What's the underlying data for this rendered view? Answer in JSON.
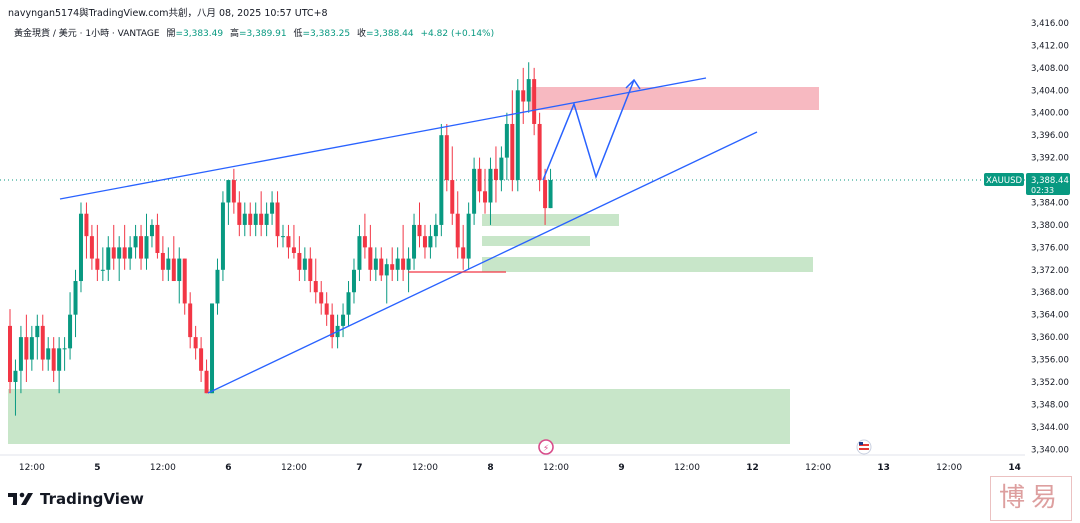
{
  "header": {
    "publish_line": "navyngan5174與TradingView.com共創，八月 08, 2025 10:57 UTC+8"
  },
  "legend": {
    "symbol_line": "黃金現貨 / 美元 · 1小時 · VANTAGE",
    "open_label": "開",
    "open": "=3,383.49",
    "high_label": "高",
    "high": "=3,389.91",
    "low_label": "低",
    "low": "=3,383.25",
    "close_label": "收",
    "close": "=3,388.44",
    "change": "+4.82 (+0.14%)"
  },
  "price_tag": {
    "symbol": "XAUUSD",
    "price": "3,388.44",
    "countdown": "02:33"
  },
  "footer": {
    "brand": "TradingView",
    "watermark": "博易"
  },
  "colors": {
    "up": "#089981",
    "down": "#f23645",
    "trendline": "#2962ff",
    "resistance_zone": "#f7b9c1",
    "support_zone": "#c8e6c9",
    "price_line": "#089981"
  },
  "chart_data": {
    "type": "candlestick",
    "timeframe": "1h",
    "ylim": [
      3338,
      3418
    ],
    "y_ticks": [
      "3,416.00",
      "3,412.00",
      "3,408.00",
      "3,404.00",
      "3,400.00",
      "3,396.00",
      "3,392.00",
      "3,388.00",
      "3,384.00",
      "3,380.00",
      "3,376.00",
      "3,372.00",
      "3,368.00",
      "3,364.00",
      "3,360.00",
      "3,356.00",
      "3,352.00",
      "3,348.00",
      "3,344.00",
      "3,340.00"
    ],
    "y_tick_values": [
      3416,
      3412,
      3408,
      3404,
      3400,
      3396,
      3392,
      3388,
      3384,
      3380,
      3376,
      3372,
      3368,
      3364,
      3360,
      3356,
      3352,
      3348,
      3344,
      3340
    ],
    "x_ticks": [
      "12:00",
      "5",
      "12:00",
      "6",
      "12:00",
      "7",
      "12:00",
      "8",
      "12:00",
      "9",
      "12:00",
      "12",
      "12:00",
      "13",
      "12:00",
      "14"
    ],
    "x_tick_bold": [
      false,
      true,
      false,
      true,
      false,
      true,
      false,
      true,
      false,
      true,
      false,
      true,
      false,
      true,
      false,
      true
    ],
    "x_tick_index": [
      0,
      12,
      24,
      36,
      48,
      60,
      72,
      84,
      96,
      108,
      120,
      132,
      144,
      156,
      168,
      180
    ],
    "x_tick_index_offset": 4,
    "candles": [
      [
        3362,
        3365,
        3350,
        3352
      ],
      [
        3352,
        3356,
        3346,
        3354
      ],
      [
        3354,
        3362,
        3350,
        3360
      ],
      [
        3360,
        3364,
        3352,
        3356
      ],
      [
        3356,
        3362,
        3354,
        3360
      ],
      [
        3360,
        3364,
        3356,
        3362
      ],
      [
        3362,
        3364,
        3354,
        3356
      ],
      [
        3356,
        3360,
        3354,
        3358
      ],
      [
        3358,
        3360,
        3352,
        3354
      ],
      [
        3354,
        3360,
        3350,
        3358
      ],
      [
        3358,
        3360,
        3354,
        3358
      ],
      [
        3358,
        3368,
        3356,
        3364
      ],
      [
        3364,
        3372,
        3360,
        3370
      ],
      [
        3370,
        3384,
        3368,
        3382
      ],
      [
        3382,
        3384,
        3374,
        3378
      ],
      [
        3378,
        3380,
        3372,
        3374
      ],
      [
        3374,
        3380,
        3370,
        3372
      ],
      [
        3372,
        3376,
        3370,
        3372
      ],
      [
        3372,
        3378,
        3370,
        3376
      ],
      [
        3376,
        3380,
        3372,
        3374
      ],
      [
        3374,
        3378,
        3370,
        3376
      ],
      [
        3376,
        3380,
        3372,
        3374
      ],
      [
        3374,
        3378,
        3372,
        3376
      ],
      [
        3376,
        3380,
        3374,
        3378
      ],
      [
        3378,
        3380,
        3372,
        3374
      ],
      [
        3374,
        3382,
        3372,
        3378
      ],
      [
        3378,
        3381,
        3376,
        3380
      ],
      [
        3380,
        3382,
        3374,
        3375
      ],
      [
        3375,
        3378,
        3370,
        3372
      ],
      [
        3372,
        3376,
        3370,
        3374
      ],
      [
        3374,
        3378,
        3370,
        3370
      ],
      [
        3370,
        3376,
        3366,
        3374
      ],
      [
        3374,
        3374,
        3364,
        3366
      ],
      [
        3366,
        3368,
        3358,
        3360
      ],
      [
        3360,
        3362,
        3356,
        3358
      ],
      [
        3358,
        3360,
        3352,
        3354
      ],
      [
        3354,
        3356,
        3350,
        3350
      ],
      [
        3350,
        3366,
        3350,
        3366
      ],
      [
        3366,
        3374,
        3364,
        3372
      ],
      [
        3372,
        3386,
        3370,
        3384
      ],
      [
        3384,
        3388,
        3380,
        3388
      ],
      [
        3388,
        3390,
        3382,
        3384
      ],
      [
        3384,
        3386,
        3378,
        3380
      ],
      [
        3380,
        3384,
        3378,
        3382
      ],
      [
        3382,
        3384,
        3378,
        3380
      ],
      [
        3380,
        3384,
        3378,
        3382
      ],
      [
        3382,
        3386,
        3378,
        3380
      ],
      [
        3380,
        3384,
        3378,
        3382
      ],
      [
        3382,
        3386,
        3380,
        3384
      ],
      [
        3384,
        3386,
        3376,
        3378
      ],
      [
        3378,
        3380,
        3376,
        3378
      ],
      [
        3378,
        3380,
        3374,
        3376
      ],
      [
        3376,
        3380,
        3374,
        3375
      ],
      [
        3375,
        3378,
        3370,
        3372
      ],
      [
        3372,
        3376,
        3370,
        3374
      ],
      [
        3374,
        3376,
        3368,
        3370
      ],
      [
        3370,
        3374,
        3366,
        3368
      ],
      [
        3368,
        3370,
        3364,
        3366
      ],
      [
        3366,
        3368,
        3362,
        3364
      ],
      [
        3364,
        3366,
        3358,
        3360
      ],
      [
        3360,
        3364,
        3358,
        3362
      ],
      [
        3362,
        3366,
        3360,
        3364
      ],
      [
        3364,
        3370,
        3362,
        3368
      ],
      [
        3368,
        3374,
        3366,
        3372
      ],
      [
        3372,
        3380,
        3370,
        3378
      ],
      [
        3378,
        3382,
        3374,
        3376
      ],
      [
        3376,
        3380,
        3370,
        3372
      ],
      [
        3372,
        3376,
        3370,
        3374
      ],
      [
        3374,
        3376,
        3370,
        3371
      ],
      [
        3371,
        3374,
        3366,
        3373
      ],
      [
        3373,
        3376,
        3370,
        3372
      ],
      [
        3372,
        3376,
        3370,
        3374
      ],
      [
        3374,
        3380,
        3370,
        3372
      ],
      [
        3372,
        3376,
        3368,
        3374
      ],
      [
        3374,
        3382,
        3372,
        3380
      ],
      [
        3380,
        3384,
        3376,
        3378
      ],
      [
        3378,
        3380,
        3374,
        3376
      ],
      [
        3376,
        3380,
        3374,
        3378
      ],
      [
        3378,
        3382,
        3376,
        3380
      ],
      [
        3380,
        3398,
        3378,
        3396
      ],
      [
        3396,
        3398,
        3386,
        3388
      ],
      [
        3388,
        3394,
        3380,
        3382
      ],
      [
        3382,
        3386,
        3374,
        3376
      ],
      [
        3376,
        3380,
        3372,
        3374
      ],
      [
        3374,
        3384,
        3372,
        3382
      ],
      [
        3382,
        3392,
        3380,
        3390
      ],
      [
        3390,
        3392,
        3384,
        3386
      ],
      [
        3386,
        3390,
        3382,
        3384
      ],
      [
        3384,
        3392,
        3380,
        3390
      ],
      [
        3390,
        3394,
        3384,
        3388
      ],
      [
        3388,
        3394,
        3386,
        3392
      ],
      [
        3392,
        3400,
        3388,
        3398
      ],
      [
        3398,
        3404,
        3386,
        3388
      ],
      [
        3388,
        3406,
        3386,
        3404
      ],
      [
        3404,
        3408,
        3398,
        3402
      ],
      [
        3402,
        3409,
        3400,
        3406
      ],
      [
        3406,
        3408,
        3396,
        3398
      ],
      [
        3398,
        3400,
        3386,
        3388
      ],
      [
        3388,
        3390,
        3380,
        3383
      ],
      [
        3383,
        3390,
        3383,
        3388
      ]
    ]
  }
}
